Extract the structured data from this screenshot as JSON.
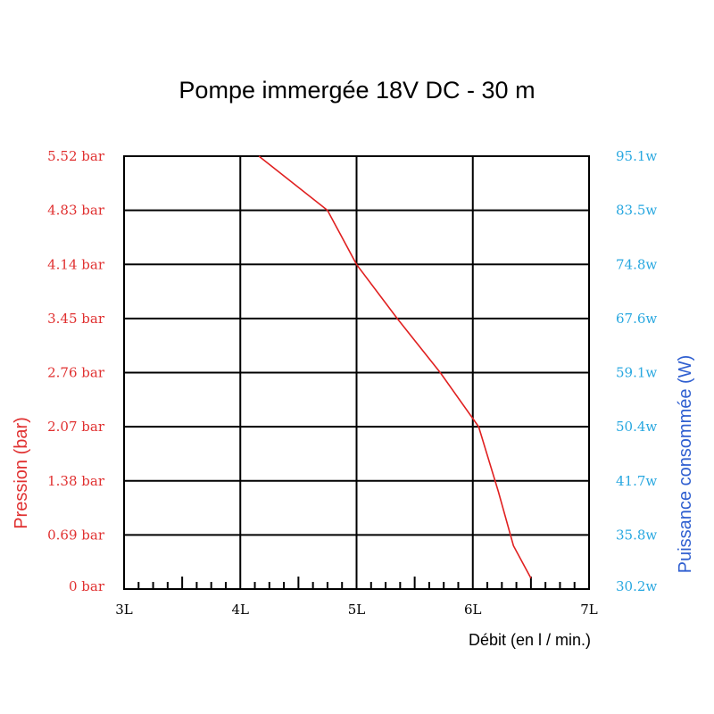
{
  "colors": {
    "pressure": "#e03030",
    "power": "#29a8e0",
    "power_title": "#2f5fd0",
    "curve": "#e02020",
    "grid": "#000000"
  },
  "chart_data": {
    "type": "line",
    "title": "Pompe immergée 18V DC - 30 m",
    "xlabel": "Débit (en l / min.)",
    "ylabel": "Pression (bar)",
    "y2label": "Puissance consommée (W)",
    "x_tick_labels": [
      "3L",
      "4L",
      "5L",
      "6L",
      "7L"
    ],
    "xlim": [
      3,
      7
    ],
    "ylim": [
      0,
      8
    ],
    "y_tick_labels": [
      "0 bar",
      "0.69 bar",
      "1.38 bar",
      "2.07 bar",
      "2.76 bar",
      "3.45 bar",
      "4.14 bar",
      "4.83 bar",
      "5.52 bar"
    ],
    "y2_tick_labels": [
      "30.2w",
      "35.8w",
      "41.7w",
      "50.4w",
      "59.1w",
      "67.6w",
      "74.8w",
      "83.5w",
      "95.1w"
    ],
    "grid": true,
    "series": [
      {
        "x": [
          4.16,
          4.75,
          5.0,
          5.35,
          5.72,
          6.05,
          6.22,
          6.35,
          6.5
        ],
        "y": [
          8.0,
          7.0,
          6.0,
          5.0,
          4.0,
          3.0,
          1.8,
          0.8,
          0.2
        ]
      }
    ]
  }
}
